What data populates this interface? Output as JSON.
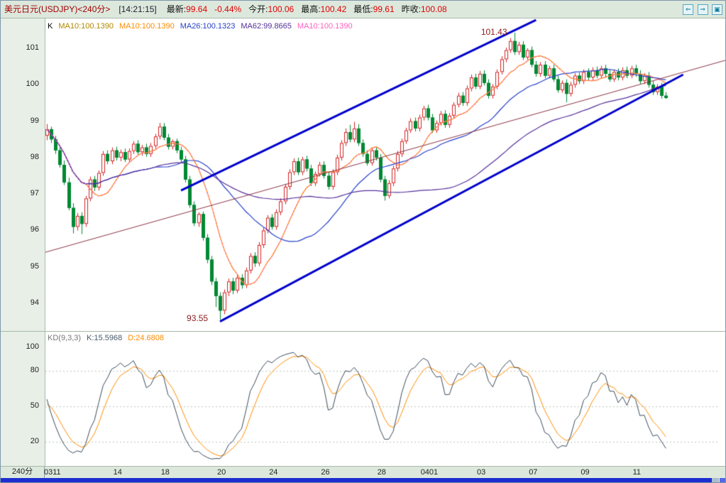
{
  "header": {
    "title": "美元日元(USDJPY)<240分>",
    "time": "[14:21:15]",
    "quotes": [
      {
        "label": "最新:",
        "value": "99.64"
      },
      {
        "label": "",
        "value": "-0.44%"
      },
      {
        "label": "今开:",
        "value": "100.06"
      },
      {
        "label": "最高:",
        "value": "100.42"
      },
      {
        "label": "最低:",
        "value": "99.61"
      },
      {
        "label": "昨收:",
        "value": "100.08"
      }
    ],
    "nav_buttons": [
      {
        "name": "back",
        "glyph": "⇐"
      },
      {
        "name": "forward",
        "glyph": "⇒"
      },
      {
        "name": "window",
        "glyph": "▣"
      }
    ]
  },
  "axis": {
    "period": "240分"
  },
  "colors": {
    "up": "#d42020",
    "down": "#008833",
    "channel": "#0000cc",
    "baseline": "#8b3344",
    "annotation": "#8b1a1a",
    "panel_bg": "#ffffff",
    "chrome_bg": "#dde8dd"
  },
  "chart_data": {
    "type": "candlestick+stochastic",
    "title": "USDJPY 240-minute chart with MA overlays, trend channel and KD(9,3,3)",
    "x_labels": [
      {
        "text": "0311",
        "i": 0
      },
      {
        "text": "14",
        "i": 16
      },
      {
        "text": "18",
        "i": 27
      },
      {
        "text": "20",
        "i": 40
      },
      {
        "text": "24",
        "i": 52
      },
      {
        "text": "26",
        "i": 64
      },
      {
        "text": "28",
        "i": 77
      },
      {
        "text": "0401",
        "i": 87
      },
      {
        "text": "03",
        "i": 100
      },
      {
        "text": "07",
        "i": 112
      },
      {
        "text": "09",
        "i": 124
      },
      {
        "text": "11",
        "i": 136
      }
    ],
    "price_panel": {
      "y_ticks": [
        101,
        100,
        99,
        98,
        97,
        96,
        95,
        94
      ],
      "ylim": [
        93.24,
        101.82
      ],
      "up_color": "#d42020",
      "down_color": "#008833",
      "legend": [
        {
          "text": "K",
          "color": "#000000"
        },
        {
          "text": "MA10:100.1390",
          "color": "#b08800"
        },
        {
          "text": "MA10:100.1390",
          "color": "#ff8c00"
        },
        {
          "text": "MA26:100.1323",
          "color": "#2741c8"
        },
        {
          "text": "MA62:99.8665",
          "color": "#55309a"
        },
        {
          "text": "MA10:100.1390",
          "color": "#ff5fbf"
        }
      ],
      "overlays": [
        {
          "name": "MA10",
          "period": 10,
          "color": "#ff8c00",
          "dash": false
        },
        {
          "name": "MA26",
          "period": 26,
          "color": "#2741c8",
          "dash": false
        },
        {
          "name": "MA62",
          "period": 62,
          "color": "#55309a",
          "dash": false
        },
        {
          "name": "MA10",
          "period": 10,
          "color": "#ff5fbf",
          "dash": true
        }
      ],
      "trendlines": [
        {
          "i1": 31,
          "p1": 97.1,
          "i2": 113,
          "p2": 101.78,
          "color": "#0000cc",
          "width": 3
        },
        {
          "i1": 40,
          "p1": 93.5,
          "i2": 147,
          "p2": 100.28,
          "color": "#0000cc",
          "width": 3
        },
        {
          "i1": -1,
          "p1": 95.38,
          "i2": 157,
          "p2": 100.68,
          "color": "#8b3344",
          "width": 1
        }
      ],
      "annotations": [
        {
          "text": "101.43",
          "i": 100.3,
          "price": 101.45,
          "color": "#8b1a1a"
        },
        {
          "text": "93.55",
          "i": 32.3,
          "price": 93.6,
          "color": "#8b1a1a"
        }
      ],
      "candles": [
        [
          98.6,
          98.92,
          98.48,
          98.78
        ],
        [
          98.78,
          98.85,
          98.4,
          98.5
        ],
        [
          98.5,
          98.6,
          98.1,
          98.2
        ],
        [
          98.2,
          98.3,
          97.72,
          97.8
        ],
        [
          97.8,
          97.92,
          97.25,
          97.32
        ],
        [
          97.32,
          97.45,
          96.55,
          96.62
        ],
        [
          96.62,
          96.75,
          95.92,
          96.1
        ],
        [
          96.1,
          96.48,
          96.0,
          96.4
        ],
        [
          96.4,
          96.5,
          95.9,
          96.18
        ],
        [
          96.18,
          96.95,
          96.1,
          96.88
        ],
        [
          96.88,
          97.48,
          96.8,
          97.4
        ],
        [
          97.4,
          97.5,
          97.08,
          97.18
        ],
        [
          97.18,
          97.65,
          97.1,
          97.58
        ],
        [
          97.58,
          98.18,
          97.5,
          98.1
        ],
        [
          98.1,
          98.2,
          97.82,
          97.9
        ],
        [
          97.9,
          98.28,
          97.82,
          98.2
        ],
        [
          98.2,
          98.3,
          97.92,
          98.0
        ],
        [
          98.0,
          98.22,
          97.9,
          98.15
        ],
        [
          98.15,
          98.25,
          97.88,
          97.95
        ],
        [
          97.95,
          98.25,
          97.88,
          98.18
        ],
        [
          98.18,
          98.45,
          98.1,
          98.38
        ],
        [
          98.38,
          98.48,
          98.08,
          98.15
        ],
        [
          98.15,
          98.35,
          98.05,
          98.28
        ],
        [
          98.28,
          98.38,
          98.02,
          98.1
        ],
        [
          98.1,
          98.4,
          98.02,
          98.32
        ],
        [
          98.32,
          98.65,
          98.25,
          98.58
        ],
        [
          98.58,
          98.95,
          98.5,
          98.85
        ],
        [
          98.85,
          98.95,
          98.48,
          98.55
        ],
        [
          98.55,
          98.65,
          98.22,
          98.3
        ],
        [
          98.3,
          98.5,
          98.22,
          98.45
        ],
        [
          98.45,
          98.52,
          98.12,
          98.2
        ],
        [
          98.2,
          98.3,
          97.88,
          97.95
        ],
        [
          97.95,
          98.05,
          97.32,
          97.4
        ],
        [
          97.4,
          97.5,
          96.62,
          96.7
        ],
        [
          96.7,
          96.8,
          96.12,
          96.2
        ],
        [
          96.2,
          96.5,
          96.1,
          96.45
        ],
        [
          96.45,
          96.52,
          95.72,
          95.8
        ],
        [
          95.8,
          95.9,
          95.1,
          95.2
        ],
        [
          95.2,
          95.3,
          94.5,
          94.6
        ],
        [
          94.6,
          94.7,
          93.9,
          94.2
        ],
        [
          94.2,
          94.3,
          93.55,
          93.8
        ],
        [
          93.8,
          94.38,
          93.7,
          94.3
        ],
        [
          94.3,
          94.68,
          94.2,
          94.6
        ],
        [
          94.6,
          94.7,
          94.25,
          94.35
        ],
        [
          94.35,
          94.78,
          94.28,
          94.7
        ],
        [
          94.7,
          94.8,
          94.4,
          94.5
        ],
        [
          94.5,
          94.98,
          94.42,
          94.9
        ],
        [
          94.9,
          95.38,
          94.82,
          95.3
        ],
        [
          95.3,
          95.4,
          95.0,
          95.1
        ],
        [
          95.1,
          95.68,
          95.02,
          95.6
        ],
        [
          95.6,
          96.08,
          95.52,
          96.0
        ],
        [
          96.0,
          96.42,
          95.92,
          96.35
        ],
        [
          96.35,
          96.45,
          96.02,
          96.1
        ],
        [
          96.1,
          96.58,
          96.02,
          96.5
        ],
        [
          96.5,
          96.88,
          96.42,
          96.8
        ],
        [
          96.8,
          97.28,
          96.72,
          97.2
        ],
        [
          97.2,
          97.68,
          97.12,
          97.6
        ],
        [
          97.6,
          97.98,
          97.52,
          97.9
        ],
        [
          97.9,
          98.0,
          97.52,
          97.6
        ],
        [
          97.6,
          98.02,
          97.52,
          97.95
        ],
        [
          97.95,
          98.05,
          97.62,
          97.7
        ],
        [
          97.7,
          97.8,
          97.22,
          97.3
        ],
        [
          97.3,
          97.62,
          97.22,
          97.55
        ],
        [
          97.55,
          97.88,
          97.48,
          97.8
        ],
        [
          97.8,
          97.9,
          97.42,
          97.5
        ],
        [
          97.5,
          97.6,
          97.12,
          97.2
        ],
        [
          97.2,
          97.68,
          97.12,
          97.6
        ],
        [
          97.6,
          98.08,
          97.52,
          98.0
        ],
        [
          98.0,
          98.48,
          97.92,
          98.4
        ],
        [
          98.4,
          98.8,
          98.32,
          98.7
        ],
        [
          98.7,
          98.9,
          98.42,
          98.5
        ],
        [
          98.5,
          98.98,
          98.42,
          98.8
        ],
        [
          98.8,
          98.92,
          98.32,
          98.4
        ],
        [
          98.4,
          98.5,
          98.02,
          98.1
        ],
        [
          98.1,
          98.2,
          97.78,
          97.85
        ],
        [
          97.85,
          98.28,
          97.78,
          98.2
        ],
        [
          98.2,
          98.3,
          97.92,
          98.0
        ],
        [
          98.0,
          98.1,
          97.32,
          97.4
        ],
        [
          97.4,
          97.5,
          96.82,
          96.95
        ],
        [
          96.95,
          97.38,
          96.88,
          97.3
        ],
        [
          97.3,
          97.78,
          97.22,
          97.7
        ],
        [
          97.7,
          98.18,
          97.62,
          98.1
        ],
        [
          98.1,
          98.52,
          98.02,
          98.45
        ],
        [
          98.45,
          98.82,
          98.38,
          98.75
        ],
        [
          98.75,
          99.08,
          98.68,
          99.0
        ],
        [
          99.0,
          99.1,
          98.72,
          98.8
        ],
        [
          98.8,
          99.18,
          98.72,
          99.1
        ],
        [
          99.1,
          99.42,
          99.02,
          99.35
        ],
        [
          99.35,
          99.45,
          99.02,
          99.1
        ],
        [
          99.1,
          99.2,
          98.68,
          98.75
        ],
        [
          98.75,
          99.02,
          98.68,
          98.95
        ],
        [
          98.95,
          99.28,
          98.88,
          99.2
        ],
        [
          99.2,
          99.3,
          98.82,
          98.9
        ],
        [
          98.9,
          99.22,
          98.82,
          99.15
        ],
        [
          99.15,
          99.52,
          99.08,
          99.45
        ],
        [
          99.45,
          99.78,
          99.38,
          99.7
        ],
        [
          99.7,
          99.8,
          99.42,
          99.5
        ],
        [
          99.5,
          99.98,
          99.42,
          99.9
        ],
        [
          99.9,
          100.28,
          99.82,
          100.2
        ],
        [
          100.2,
          100.3,
          99.88,
          99.95
        ],
        [
          99.95,
          100.38,
          99.88,
          100.3
        ],
        [
          100.3,
          100.4,
          99.98,
          100.05
        ],
        [
          100.05,
          100.15,
          99.62,
          99.7
        ],
        [
          99.7,
          100.02,
          99.62,
          99.95
        ],
        [
          99.95,
          100.42,
          99.88,
          100.35
        ],
        [
          100.35,
          100.78,
          100.28,
          100.7
        ],
        [
          100.7,
          101.02,
          100.62,
          100.95
        ],
        [
          100.95,
          101.28,
          100.88,
          101.2
        ],
        [
          101.2,
          101.43,
          100.82,
          100.9
        ],
        [
          100.9,
          101.18,
          100.82,
          101.1
        ],
        [
          101.1,
          101.2,
          100.68,
          100.75
        ],
        [
          100.75,
          101.0,
          100.68,
          100.95
        ],
        [
          100.95,
          101.05,
          100.48,
          100.55
        ],
        [
          100.55,
          100.65,
          100.22,
          100.3
        ],
        [
          100.3,
          100.62,
          100.22,
          100.55
        ],
        [
          100.55,
          100.65,
          100.18,
          100.25
        ],
        [
          100.25,
          100.52,
          100.18,
          100.45
        ],
        [
          100.45,
          100.55,
          100.08,
          100.15
        ],
        [
          100.15,
          100.25,
          99.78,
          99.85
        ],
        [
          99.85,
          100.12,
          99.78,
          100.05
        ],
        [
          100.05,
          100.15,
          99.52,
          99.75
        ],
        [
          99.75,
          100.08,
          99.68,
          100.0
        ],
        [
          100.0,
          100.32,
          99.92,
          100.25
        ],
        [
          100.25,
          100.35,
          100.02,
          100.1
        ],
        [
          100.1,
          100.42,
          100.02,
          100.35
        ],
        [
          100.35,
          100.45,
          100.12,
          100.2
        ],
        [
          100.2,
          100.48,
          100.12,
          100.4
        ],
        [
          100.4,
          100.5,
          100.18,
          100.25
        ],
        [
          100.25,
          100.52,
          100.18,
          100.45
        ],
        [
          100.45,
          100.55,
          100.22,
          100.3
        ],
        [
          100.3,
          100.4,
          100.08,
          100.15
        ],
        [
          100.15,
          100.42,
          100.08,
          100.35
        ],
        [
          100.35,
          100.45,
          100.12,
          100.2
        ],
        [
          100.2,
          100.48,
          100.12,
          100.4
        ],
        [
          100.4,
          100.5,
          100.18,
          100.25
        ],
        [
          100.25,
          100.52,
          100.18,
          100.45
        ],
        [
          100.45,
          100.55,
          100.22,
          100.3
        ],
        [
          100.3,
          100.4,
          100.02,
          100.1
        ],
        [
          100.1,
          100.32,
          100.02,
          100.25
        ],
        [
          100.25,
          100.35,
          99.92,
          100.0
        ],
        [
          100.0,
          100.1,
          99.72,
          99.8
        ],
        [
          99.8,
          100.02,
          99.72,
          99.95
        ],
        [
          99.95,
          100.05,
          99.62,
          99.7
        ],
        [
          99.7,
          99.8,
          99.61,
          99.64
        ]
      ]
    },
    "kd_panel": {
      "name": "KD(9,3,3)",
      "params": [
        9,
        3,
        3
      ],
      "k_last": 15.5968,
      "d_last": 24.6808,
      "y_ticks": [
        100,
        80,
        50,
        20
      ],
      "k_color": "#3a4a5a",
      "d_color": "#ff8c00",
      "legend": [
        {
          "text": "KD(9,3,3)",
          "color": "#777777"
        },
        {
          "text": "K:15.5968",
          "color": "#4a5a6a"
        },
        {
          "text": "D:24.6808",
          "color": "#ff8c00"
        }
      ]
    }
  }
}
